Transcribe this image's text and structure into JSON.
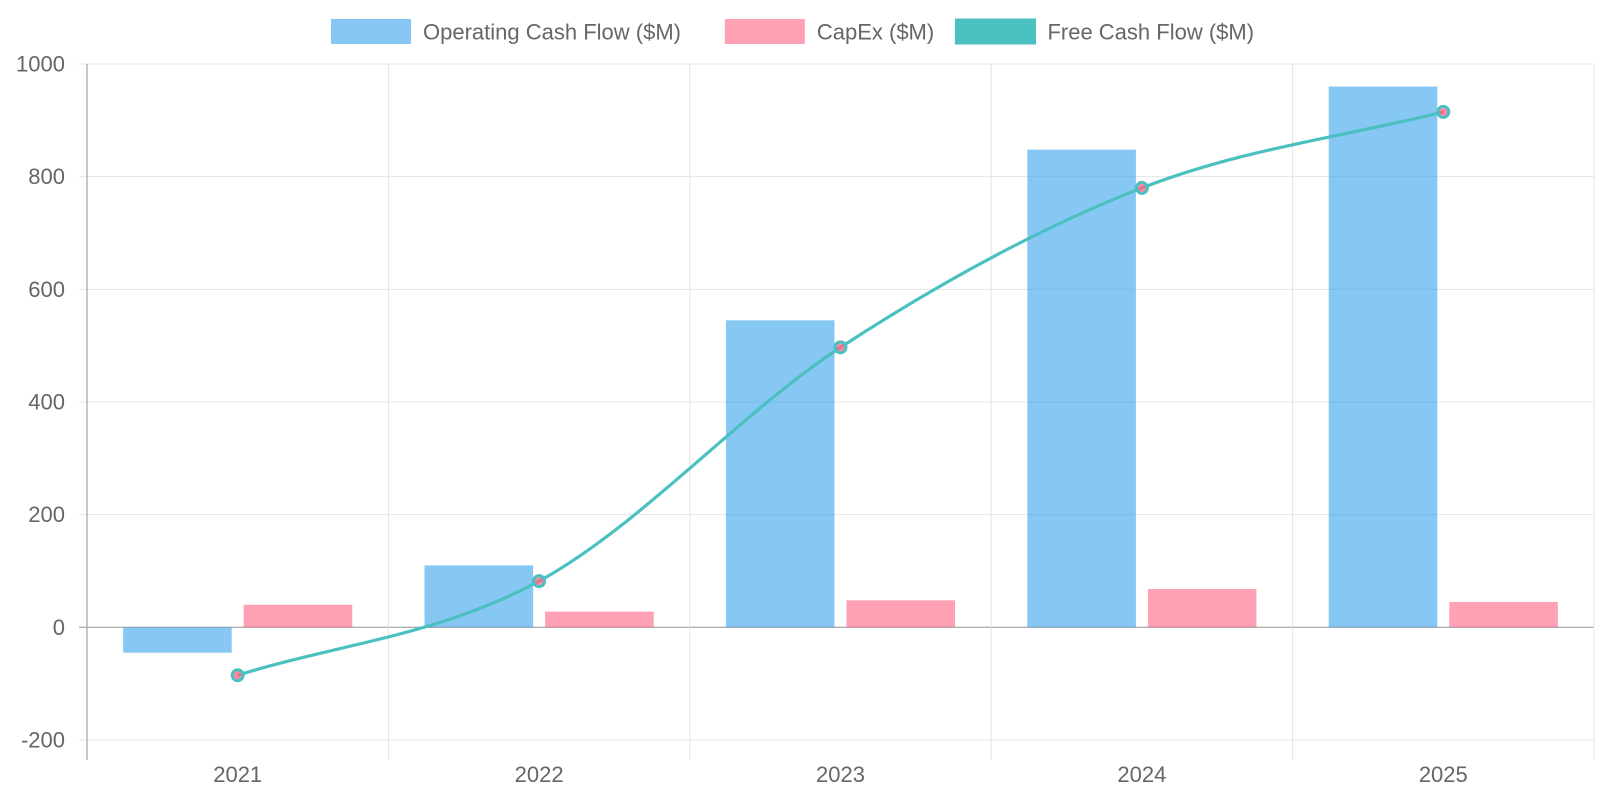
{
  "chart_data": {
    "type": "bar",
    "title": "",
    "xlabel": "",
    "ylabel": "",
    "categories": [
      "2021",
      "2022",
      "2023",
      "2024",
      "2025"
    ],
    "ylim": [
      -200,
      1000
    ],
    "yticks": [
      -200,
      0,
      200,
      400,
      600,
      800,
      1000
    ],
    "grid": true,
    "legend_position": "top-center",
    "series": [
      {
        "name": "Operating Cash Flow ($M)",
        "type": "bar",
        "values": [
          -45,
          110,
          545,
          848,
          960
        ],
        "color": "#36A2EB"
      },
      {
        "name": "CapEx ($M)",
        "type": "bar",
        "values": [
          40,
          28,
          48,
          68,
          45
        ],
        "color": "#FF6384"
      },
      {
        "name": "Free Cash Flow ($M)",
        "type": "line",
        "values": [
          -85,
          82,
          497,
          780,
          915
        ],
        "color": "#4BC0C0"
      }
    ]
  }
}
